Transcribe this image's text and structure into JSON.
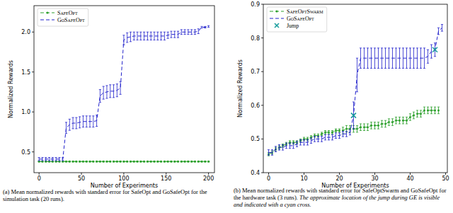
{
  "chart_data": [
    {
      "type": "line",
      "x_label": "Number of Experiments",
      "y_label": "Normalized Rewards",
      "caption": "(a) Mean normalized rewards with standard error for SafeOpt and GoSafeOpt for the simulation task (20 runs).",
      "xlim": [
        -6,
        207
      ],
      "ylim": [
        0.24,
        2.33
      ],
      "xticks": [
        0,
        50,
        100,
        150,
        200
      ],
      "yticks": [
        0.5,
        {
          "value": 1,
          "label": "1.0"
        },
        1.5,
        {
          "value": 2,
          "label": "2.0"
        }
      ],
      "grid": false,
      "legend": "upper left",
      "series": [
        {
          "name": "SafeOpt",
          "color": "#2ca02c",
          "line_style": "dashed",
          "marker": "o",
          "x": [
            0,
            4,
            8,
            12,
            16,
            20,
            24,
            28,
            32,
            36,
            40,
            44,
            48,
            52,
            56,
            60,
            64,
            68,
            72,
            76,
            80,
            84,
            88,
            92,
            96,
            100,
            104,
            108,
            112,
            116,
            120,
            124,
            128,
            132,
            136,
            140,
            144,
            148,
            152,
            156,
            160,
            164,
            168,
            172,
            176,
            180,
            184,
            188,
            192,
            196,
            200
          ],
          "values": [
            0.38,
            0.38,
            0.38,
            0.38,
            0.38,
            0.38,
            0.38,
            0.38,
            0.38,
            0.38,
            0.38,
            0.38,
            0.38,
            0.38,
            0.38,
            0.38,
            0.38,
            0.38,
            0.38,
            0.38,
            0.38,
            0.38,
            0.38,
            0.38,
            0.38,
            0.38,
            0.38,
            0.38,
            0.38,
            0.38,
            0.38,
            0.38,
            0.38,
            0.38,
            0.38,
            0.38,
            0.38,
            0.38,
            0.38,
            0.38,
            0.38,
            0.38,
            0.38,
            0.38,
            0.38,
            0.38,
            0.38,
            0.38,
            0.38,
            0.38,
            0.38
          ],
          "errors": [
            0.005,
            0.005,
            0.005,
            0.005,
            0.005,
            0.005,
            0.005,
            0.005,
            0.005,
            0.005,
            0.005,
            0.005,
            0.005,
            0.005,
            0.005,
            0.005,
            0.005,
            0.005,
            0.005,
            0.005,
            0.005,
            0.005,
            0.005,
            0.005,
            0.005,
            0.005,
            0.005,
            0.005,
            0.005,
            0.005,
            0.005,
            0.005,
            0.005,
            0.005,
            0.005,
            0.005,
            0.005,
            0.005,
            0.005,
            0.005,
            0.005,
            0.005,
            0.005,
            0.005,
            0.005,
            0.005,
            0.005,
            0.005,
            0.005,
            0.005,
            0.005
          ]
        },
        {
          "name": "GoSafeOpt",
          "color": "#2222cc",
          "line_style": "dashed",
          "marker": "none",
          "x": [
            0,
            4,
            8,
            12,
            16,
            20,
            24,
            28,
            32,
            36,
            40,
            44,
            48,
            52,
            56,
            60,
            64,
            68,
            72,
            76,
            80,
            84,
            88,
            92,
            96,
            100,
            104,
            108,
            112,
            116,
            120,
            124,
            128,
            132,
            136,
            140,
            144,
            148,
            152,
            156,
            160,
            164,
            168,
            172,
            176,
            180,
            184,
            188,
            192,
            196,
            200
          ],
          "values": [
            0.41,
            0.41,
            0.41,
            0.41,
            0.41,
            0.41,
            0.41,
            0.41,
            0.8,
            0.84,
            0.86,
            0.86,
            0.87,
            0.88,
            0.88,
            0.88,
            0.88,
            0.89,
            1.2,
            1.24,
            1.25,
            1.26,
            1.26,
            1.27,
            1.3,
            1.9,
            1.93,
            1.94,
            1.95,
            1.95,
            1.95,
            1.95,
            1.95,
            1.95,
            1.95,
            1.95,
            1.95,
            1.95,
            1.96,
            1.97,
            1.97,
            1.97,
            2.0,
            2.0,
            2.0,
            2.0,
            2.0,
            2.01,
            2.06,
            2.06,
            2.07
          ],
          "errors": [
            0.02,
            0.02,
            0.02,
            0.02,
            0.02,
            0.02,
            0.02,
            0.02,
            0.07,
            0.07,
            0.07,
            0.07,
            0.07,
            0.07,
            0.07,
            0.07,
            0.07,
            0.07,
            0.08,
            0.08,
            0.08,
            0.08,
            0.08,
            0.08,
            0.08,
            0.06,
            0.06,
            0.06,
            0.05,
            0.05,
            0.05,
            0.05,
            0.05,
            0.05,
            0.05,
            0.05,
            0.05,
            0.05,
            0.04,
            0.04,
            0.04,
            0.04,
            0.03,
            0.03,
            0.03,
            0.03,
            0.03,
            0.03,
            0.01,
            0.01,
            0.01
          ]
        }
      ]
    },
    {
      "type": "line",
      "x_label": "Number of Experiments",
      "y_label": "Normalized Rewards",
      "caption": "(b) Mean normalized rewards with standard error for SafeOptSwarm and GoSafeOpt for the hardware task (3 runs).",
      "caption_note": "The approximate location of the jump during GE is visible and indicated with a cyan cross.",
      "xlim": [
        -1.5,
        50.5
      ],
      "ylim": [
        0.4,
        0.9
      ],
      "xticks": [
        0,
        10,
        20,
        30,
        40,
        50
      ],
      "yticks": [
        0.4,
        0.5,
        0.6,
        0.7,
        0.8,
        0.9
      ],
      "grid": false,
      "legend": "upper left",
      "series": [
        {
          "name": "SafeOptSwarm",
          "color": "#2ca02c",
          "line_style": "dashed",
          "marker": "o",
          "x": [
            0,
            1,
            2,
            3,
            4,
            5,
            6,
            7,
            8,
            9,
            10,
            11,
            12,
            13,
            14,
            15,
            16,
            17,
            18,
            19,
            20,
            21,
            22,
            23,
            24,
            25,
            26,
            27,
            28,
            29,
            30,
            31,
            32,
            33,
            34,
            35,
            36,
            37,
            38,
            39,
            40,
            41,
            42,
            43,
            44,
            45,
            46,
            47,
            48
          ],
          "values": [
            0.455,
            0.46,
            0.47,
            0.475,
            0.48,
            0.485,
            0.49,
            0.49,
            0.49,
            0.495,
            0.5,
            0.5,
            0.505,
            0.51,
            0.51,
            0.515,
            0.52,
            0.52,
            0.52,
            0.525,
            0.525,
            0.525,
            0.53,
            0.53,
            0.53,
            0.53,
            0.535,
            0.535,
            0.535,
            0.54,
            0.54,
            0.54,
            0.545,
            0.545,
            0.55,
            0.55,
            0.555,
            0.555,
            0.555,
            0.555,
            0.565,
            0.57,
            0.575,
            0.575,
            0.585,
            0.585,
            0.585,
            0.585,
            0.585
          ],
          "errors": [
            0.005,
            0.005,
            0.005,
            0.005,
            0.005,
            0.005,
            0.005,
            0.005,
            0.005,
            0.005,
            0.005,
            0.005,
            0.005,
            0.005,
            0.005,
            0.005,
            0.005,
            0.005,
            0.005,
            0.005,
            0.005,
            0.01,
            0.01,
            0.01,
            0.01,
            0.01,
            0.01,
            0.01,
            0.01,
            0.01,
            0.01,
            0.01,
            0.01,
            0.01,
            0.01,
            0.01,
            0.01,
            0.01,
            0.01,
            0.01,
            0.01,
            0.01,
            0.01,
            0.01,
            0.01,
            0.01,
            0.01,
            0.01,
            0.01
          ]
        },
        {
          "name": "GoSafeOpt",
          "color": "#2222cc",
          "line_style": "dashed",
          "marker": "none",
          "x": [
            0,
            1,
            2,
            3,
            4,
            5,
            6,
            7,
            8,
            9,
            10,
            11,
            12,
            13,
            14,
            15,
            16,
            17,
            18,
            19,
            20,
            21,
            22,
            23,
            24,
            25,
            26,
            27,
            28,
            29,
            30,
            31,
            32,
            33,
            34,
            35,
            36,
            37,
            38,
            39,
            40,
            41,
            42,
            43,
            44,
            45,
            46,
            47,
            48,
            49
          ],
          "values": [
            0.46,
            0.46,
            0.47,
            0.475,
            0.475,
            0.48,
            0.48,
            0.48,
            0.485,
            0.49,
            0.49,
            0.49,
            0.495,
            0.5,
            0.5,
            0.5,
            0.505,
            0.505,
            0.505,
            0.51,
            0.51,
            0.515,
            0.515,
            0.52,
            0.57,
            0.69,
            0.74,
            0.74,
            0.74,
            0.74,
            0.74,
            0.74,
            0.74,
            0.74,
            0.74,
            0.74,
            0.74,
            0.74,
            0.74,
            0.74,
            0.74,
            0.74,
            0.74,
            0.74,
            0.74,
            0.745,
            0.76,
            0.765,
            0.82,
            0.83
          ],
          "errors": [
            0.008,
            0.008,
            0.008,
            0.008,
            0.008,
            0.008,
            0.008,
            0.008,
            0.008,
            0.008,
            0.008,
            0.008,
            0.008,
            0.008,
            0.008,
            0.008,
            0.008,
            0.008,
            0.008,
            0.008,
            0.008,
            0.008,
            0.008,
            0.008,
            0.04,
            0.05,
            0.03,
            0.03,
            0.03,
            0.03,
            0.03,
            0.03,
            0.03,
            0.03,
            0.03,
            0.03,
            0.03,
            0.03,
            0.03,
            0.03,
            0.03,
            0.03,
            0.03,
            0.03,
            0.03,
            0.02,
            0.02,
            0.02,
            0.01,
            0.01
          ]
        },
        {
          "name": "Jump",
          "type": "scatter",
          "color": "#1a9e9e",
          "marker": "x",
          "x": [
            24,
            47
          ],
          "values": [
            0.57,
            0.765
          ]
        }
      ]
    }
  ]
}
